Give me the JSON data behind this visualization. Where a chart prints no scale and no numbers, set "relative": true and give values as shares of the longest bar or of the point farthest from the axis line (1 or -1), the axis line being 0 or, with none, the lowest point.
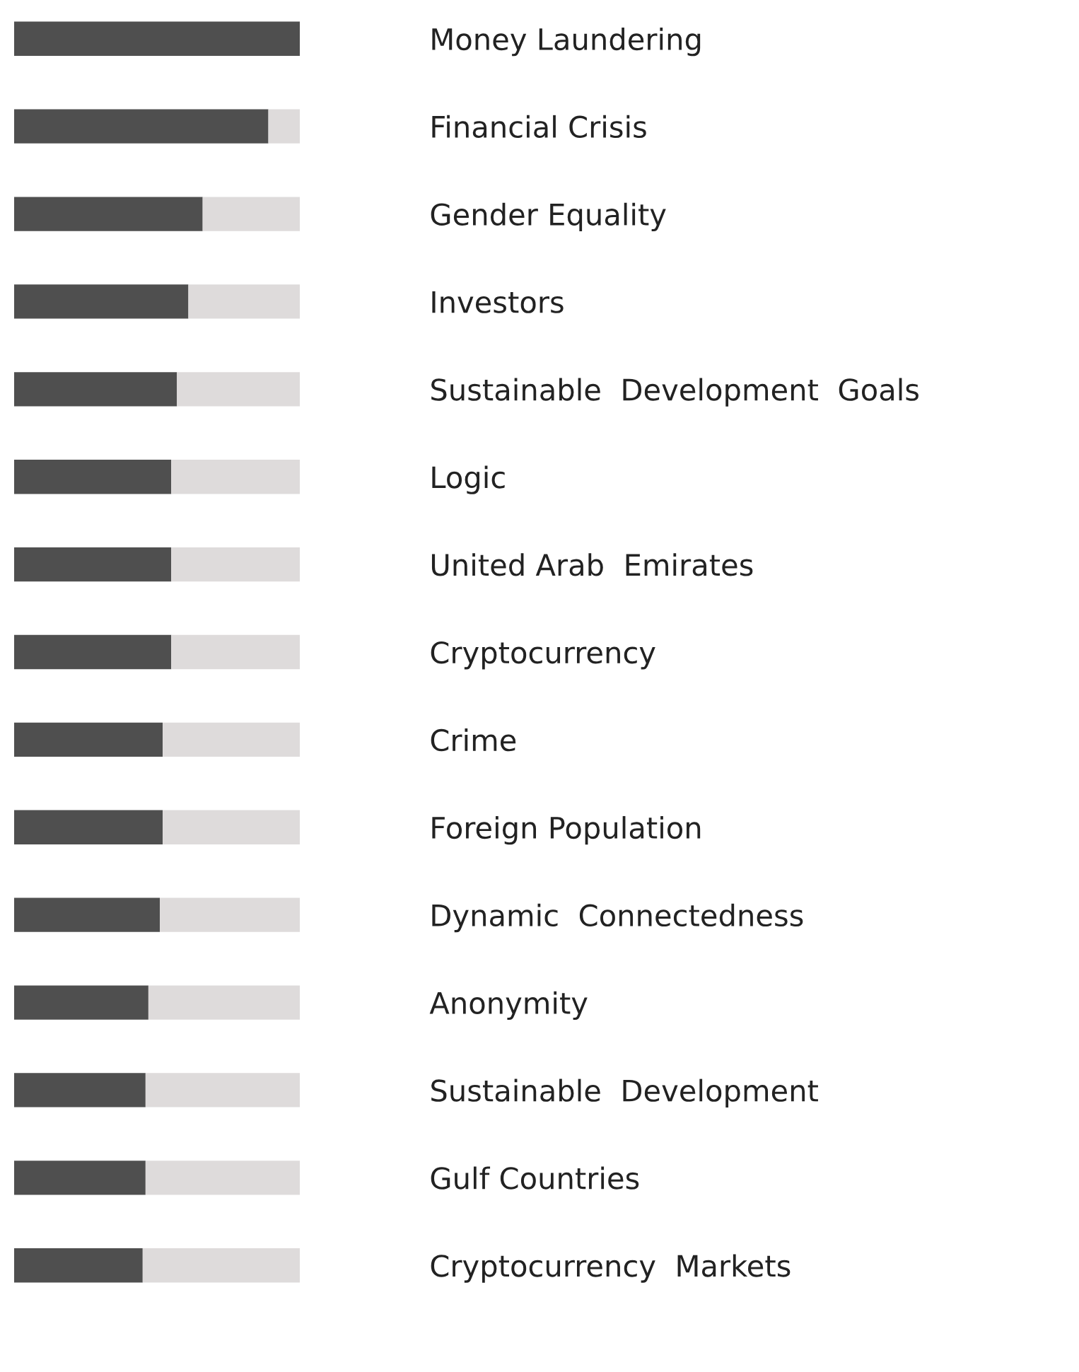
{
  "chart_data": {
    "type": "bar",
    "orientation": "horizontal",
    "stacked": true,
    "relative": true,
    "categories": [
      "Money Laundering",
      "Financial Crisis",
      "Gender Equality",
      "Investors",
      "Sustainable  Development  Goals",
      "Logic",
      "United Arab  Emirates",
      "Cryptocurrency",
      "Crime",
      "Foreign Population",
      "Dynamic  Connectedness",
      "Anonymity",
      "Sustainable  Development",
      "Gulf Countries",
      "Cryptocurrency  Markets"
    ],
    "series": [
      {
        "color": "#4f4f4f",
        "values": [
          1.0,
          0.89,
          0.66,
          0.61,
          0.57,
          0.55,
          0.55,
          0.55,
          0.52,
          0.52,
          0.51,
          0.47,
          0.46,
          0.46,
          0.45
        ]
      },
      {
        "color": "#dedbdb",
        "values": [
          null,
          0.11,
          0.34,
          0.39,
          0.43,
          0.45,
          0.45,
          0.45,
          0.48,
          0.48,
          0.49,
          0.53,
          0.54,
          0.54,
          0.55
        ]
      }
    ],
    "legend": false
  }
}
